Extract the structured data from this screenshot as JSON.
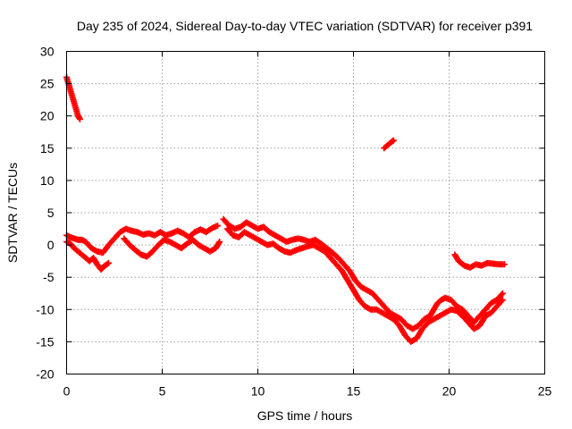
{
  "chart_data": {
    "type": "scatter",
    "title": "Day 235 of 2024, Sidereal Day-to-day VTEC variation (SDTVAR) for receiver p391",
    "xlabel": "GPS time / hours",
    "ylabel": "SDTVAR / TECUs",
    "xlim": [
      0,
      25
    ],
    "ylim": [
      -20,
      30
    ],
    "xticks": [
      0,
      5,
      10,
      15,
      20,
      25
    ],
    "yticks": [
      -20,
      -15,
      -10,
      -5,
      0,
      5,
      10,
      15,
      20,
      25,
      30
    ],
    "grid": true,
    "marker": "+",
    "color": "#ff0000",
    "series": [
      {
        "name": "SDTVAR",
        "segments": [
          [
            [
              0.0,
              26.0
            ],
            [
              0.1,
              25.0
            ],
            [
              0.2,
              24.0
            ],
            [
              0.3,
              23.0
            ],
            [
              0.4,
              22.0
            ],
            [
              0.5,
              21.0
            ],
            [
              0.6,
              20.0
            ],
            [
              0.7,
              19.5
            ]
          ],
          [
            [
              0.0,
              1.5
            ],
            [
              0.2,
              1.2
            ],
            [
              0.4,
              1.0
            ],
            [
              0.6,
              0.8
            ],
            [
              0.8,
              0.8
            ],
            [
              1.0,
              0.5
            ],
            [
              1.3,
              -0.5
            ],
            [
              1.6,
              -1.0
            ],
            [
              1.9,
              -1.2
            ],
            [
              2.2,
              0.0
            ],
            [
              2.5,
              1.0
            ],
            [
              2.8,
              2.0
            ],
            [
              3.1,
              2.5
            ],
            [
              3.4,
              2.2
            ],
            [
              3.7,
              2.0
            ],
            [
              4.0,
              1.6
            ],
            [
              4.3,
              1.8
            ],
            [
              4.6,
              1.5
            ],
            [
              4.9,
              2.0
            ],
            [
              5.2,
              1.5
            ],
            [
              5.5,
              1.8
            ],
            [
              5.8,
              2.2
            ],
            [
              6.1,
              1.8
            ],
            [
              6.4,
              1.2
            ],
            [
              6.7,
              2.0
            ],
            [
              7.0,
              2.4
            ],
            [
              7.3,
              2.0
            ],
            [
              7.6,
              2.6
            ],
            [
              7.9,
              3.0
            ]
          ],
          [
            [
              0.0,
              0.5
            ],
            [
              0.2,
              0.2
            ],
            [
              0.4,
              -0.5
            ],
            [
              0.6,
              -1.0
            ],
            [
              0.8,
              -1.5
            ],
            [
              1.0,
              -2.0
            ],
            [
              1.2,
              -2.5
            ],
            [
              1.4,
              -2.0
            ],
            [
              1.6,
              -3.0
            ],
            [
              1.8,
              -3.8
            ],
            [
              2.0,
              -3.2
            ],
            [
              2.2,
              -2.8
            ]
          ],
          [
            [
              3.0,
              1.0
            ],
            [
              3.3,
              0.0
            ],
            [
              3.6,
              -0.8
            ],
            [
              3.9,
              -1.5
            ],
            [
              4.2,
              -1.8
            ],
            [
              4.5,
              -1.0
            ],
            [
              4.8,
              0.0
            ],
            [
              5.1,
              0.8
            ],
            [
              5.4,
              0.5
            ],
            [
              5.7,
              0.0
            ],
            [
              6.0,
              -0.5
            ],
            [
              6.3,
              0.2
            ],
            [
              6.6,
              0.8
            ],
            [
              6.9,
              0.0
            ],
            [
              7.2,
              -0.5
            ],
            [
              7.5,
              -1.0
            ],
            [
              7.8,
              -0.5
            ],
            [
              8.0,
              0.5
            ]
          ],
          [
            [
              8.2,
              4.0
            ],
            [
              8.5,
              3.0
            ],
            [
              8.8,
              2.5
            ],
            [
              9.1,
              2.8
            ],
            [
              9.4,
              3.5
            ],
            [
              9.7,
              3.0
            ],
            [
              10.0,
              2.5
            ],
            [
              10.3,
              2.8
            ],
            [
              10.6,
              2.0
            ],
            [
              10.9,
              1.5
            ],
            [
              11.2,
              1.0
            ],
            [
              11.5,
              0.5
            ],
            [
              11.8,
              0.8
            ],
            [
              12.1,
              1.0
            ],
            [
              12.4,
              0.8
            ],
            [
              12.7,
              0.5
            ],
            [
              13.0,
              0.8
            ],
            [
              13.3,
              0.2
            ],
            [
              13.6,
              -0.5
            ],
            [
              13.9,
              -1.2
            ],
            [
              14.2,
              -2.0
            ],
            [
              14.5,
              -3.0
            ],
            [
              14.8,
              -4.0
            ],
            [
              15.1,
              -5.5
            ],
            [
              15.4,
              -6.5
            ],
            [
              15.7,
              -7.0
            ],
            [
              16.0,
              -7.5
            ],
            [
              16.3,
              -8.5
            ],
            [
              16.6,
              -9.5
            ],
            [
              16.9,
              -10.5
            ],
            [
              17.2,
              -11.0
            ],
            [
              17.5,
              -11.5
            ],
            [
              17.8,
              -12.5
            ],
            [
              18.1,
              -13.0
            ],
            [
              18.4,
              -12.5
            ],
            [
              18.7,
              -11.5
            ],
            [
              19.0,
              -11.0
            ],
            [
              19.2,
              -10.0
            ],
            [
              19.4,
              -9.0
            ],
            [
              19.6,
              -8.5
            ],
            [
              19.8,
              -8.2
            ],
            [
              20.1,
              -8.5
            ],
            [
              20.4,
              -9.5
            ],
            [
              20.7,
              -10.0
            ],
            [
              21.0,
              -11.0
            ],
            [
              21.3,
              -12.0
            ],
            [
              21.6,
              -11.0
            ],
            [
              21.9,
              -10.0
            ],
            [
              22.2,
              -9.0
            ],
            [
              22.5,
              -8.5
            ],
            [
              22.8,
              -7.5
            ]
          ],
          [
            [
              8.4,
              2.5
            ],
            [
              8.7,
              1.5
            ],
            [
              9.0,
              1.2
            ],
            [
              9.3,
              2.0
            ],
            [
              9.6,
              1.5
            ],
            [
              9.9,
              1.0
            ],
            [
              10.2,
              0.5
            ],
            [
              10.5,
              0.0
            ],
            [
              10.8,
              0.2
            ],
            [
              11.1,
              -0.5
            ],
            [
              11.4,
              -1.0
            ],
            [
              11.7,
              -1.2
            ],
            [
              12.0,
              -0.8
            ],
            [
              12.3,
              -0.5
            ],
            [
              12.6,
              -0.2
            ],
            [
              12.9,
              0.0
            ],
            [
              13.2,
              -0.5
            ],
            [
              13.5,
              -1.0
            ],
            [
              13.8,
              -2.0
            ],
            [
              14.1,
              -3.0
            ],
            [
              14.4,
              -4.0
            ],
            [
              14.7,
              -5.5
            ],
            [
              15.0,
              -7.0
            ],
            [
              15.3,
              -8.5
            ],
            [
              15.6,
              -9.5
            ],
            [
              15.9,
              -10.0
            ],
            [
              16.2,
              -10.0
            ],
            [
              16.5,
              -10.5
            ],
            [
              16.8,
              -11.0
            ],
            [
              17.1,
              -11.5
            ],
            [
              17.4,
              -12.5
            ],
            [
              17.7,
              -14.0
            ],
            [
              18.0,
              -15.0
            ],
            [
              18.3,
              -14.5
            ],
            [
              18.6,
              -13.0
            ],
            [
              18.9,
              -12.0
            ],
            [
              19.2,
              -11.5
            ],
            [
              19.5,
              -11.0
            ],
            [
              19.8,
              -10.5
            ],
            [
              20.1,
              -10.0
            ],
            [
              20.4,
              -10.2
            ],
            [
              20.7,
              -11.0
            ],
            [
              21.0,
              -12.0
            ],
            [
              21.3,
              -13.0
            ],
            [
              21.6,
              -12.5
            ],
            [
              21.9,
              -11.0
            ],
            [
              22.2,
              -10.5
            ],
            [
              22.5,
              -9.5
            ],
            [
              22.8,
              -8.5
            ]
          ],
          [
            [
              16.6,
              15.0
            ],
            [
              16.8,
              15.5
            ],
            [
              17.0,
              16.0
            ],
            [
              17.1,
              16.2
            ]
          ],
          [
            [
              20.3,
              -1.5
            ],
            [
              20.5,
              -2.5
            ],
            [
              20.8,
              -3.2
            ],
            [
              21.1,
              -3.5
            ],
            [
              21.4,
              -3.0
            ],
            [
              21.7,
              -3.2
            ],
            [
              22.0,
              -2.8
            ],
            [
              22.3,
              -2.9
            ],
            [
              22.6,
              -3.0
            ],
            [
              22.9,
              -3.0
            ]
          ]
        ]
      }
    ]
  }
}
